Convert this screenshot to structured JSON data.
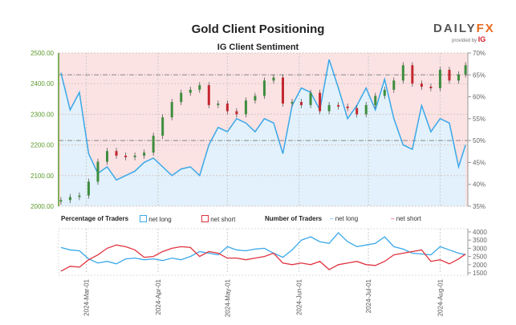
{
  "header": {
    "title": "Gold Client Positioning",
    "subtitle": "IG Client Sentiment",
    "logo": "DAILYFX",
    "provided_by": "provided by",
    "provider": "IG"
  },
  "colors": {
    "long": "#3aa8e8",
    "short": "#e03340",
    "up": "#3e8e3e",
    "down": "#c4272f",
    "short_bg": "#fbe2e3",
    "long_bg": "#e2f1fb",
    "price_axis": "#5a9a2a"
  },
  "legend": {
    "pct_title": "Percentage of Traders",
    "pct_long": "net long",
    "pct_short": "net short",
    "num_title": "Number of Traders",
    "num_long": "net long",
    "num_short": "net short"
  },
  "chart_data": [
    {
      "type": "line",
      "title": "IG Client Sentiment",
      "price_axis": {
        "ticks": [
          "2000.00",
          "2100.00",
          "2200.00",
          "2300.00",
          "2400.00",
          "2500.00"
        ],
        "ylim": [
          2000,
          2500
        ]
      },
      "pct_axis": {
        "ticks": [
          "35%",
          "40%",
          "45%",
          "50%",
          "55%",
          "60%",
          "65%",
          "70%"
        ],
        "ylim": [
          35,
          70
        ]
      },
      "reference_lines_pct": [
        65,
        50
      ],
      "dates": [
        "2024-02-19",
        "2024-02-23",
        "2024-02-27",
        "2024-03-02",
        "2024-03-06",
        "2024-03-10",
        "2024-03-14",
        "2024-03-18",
        "2024-03-22",
        "2024-03-26",
        "2024-03-30",
        "2024-04-03",
        "2024-04-07",
        "2024-04-11",
        "2024-04-15",
        "2024-04-19",
        "2024-04-23",
        "2024-04-27",
        "2024-05-01",
        "2024-05-05",
        "2024-05-09",
        "2024-05-13",
        "2024-05-17",
        "2024-05-21",
        "2024-05-25",
        "2024-05-29",
        "2024-06-02",
        "2024-06-06",
        "2024-06-10",
        "2024-06-14",
        "2024-06-18",
        "2024-06-22",
        "2024-06-26",
        "2024-06-30",
        "2024-07-04",
        "2024-07-08",
        "2024-07-12",
        "2024-07-16",
        "2024-07-20",
        "2024-07-24",
        "2024-07-28",
        "2024-08-01",
        "2024-08-05",
        "2024-08-09",
        "2024-08-12"
      ],
      "price_close": [
        2020,
        2030,
        2035,
        2080,
        2145,
        2180,
        2165,
        2160,
        2165,
        2175,
        2230,
        2290,
        2340,
        2370,
        2380,
        2395,
        2330,
        2335,
        2310,
        2300,
        2345,
        2360,
        2410,
        2420,
        2335,
        2340,
        2330,
        2370,
        2310,
        2330,
        2325,
        2320,
        2300,
        2330,
        2360,
        2380,
        2410,
        2460,
        2400,
        2390,
        2385,
        2445,
        2410,
        2430,
        2460
      ],
      "net_long_pct": [
        65.5,
        57,
        61,
        47,
        42.5,
        44,
        41,
        42,
        43,
        45,
        46,
        44,
        42,
        43.5,
        44,
        42,
        49,
        53,
        52,
        55,
        54,
        52,
        55,
        54,
        47,
        58,
        62,
        61,
        57,
        68.5,
        62,
        55,
        58,
        62,
        57,
        64,
        55,
        49,
        48,
        58,
        52,
        55,
        54,
        44,
        49
      ]
    },
    {
      "type": "line",
      "title": "Number of Traders",
      "ylim": [
        1500,
        4000
      ],
      "yticks": [
        "1500",
        "2000",
        "2500",
        "3000",
        "3500",
        "4000"
      ],
      "xticks": [
        "2024-Mar-01",
        "2024-Apr-01",
        "2024-May-01",
        "2024-Jun-01",
        "2024-Jul-01",
        "2024-Aug-01"
      ],
      "series": [
        {
          "name": "net long",
          "values": [
            3050,
            2900,
            2850,
            2350,
            2100,
            2200,
            2050,
            2350,
            2400,
            2300,
            2350,
            2250,
            2400,
            2300,
            2500,
            2800,
            2700,
            2600,
            3100,
            2900,
            2850,
            2950,
            3000,
            2700,
            2450,
            2900,
            3500,
            3700,
            3400,
            3300,
            3950,
            3400,
            3100,
            3200,
            3300,
            3700,
            3100,
            2950,
            2700,
            2650,
            2600,
            3100,
            2900,
            2700,
            2600
          ]
        },
        {
          "name": "net short",
          "values": [
            1600,
            1900,
            1850,
            2300,
            2600,
            3000,
            3200,
            3100,
            2900,
            2450,
            2500,
            2800,
            3000,
            3100,
            3050,
            2500,
            2800,
            2700,
            2400,
            2400,
            2300,
            2400,
            2500,
            2700,
            2100,
            2000,
            2100,
            2000,
            2200,
            1700,
            2000,
            2100,
            2200,
            2000,
            1950,
            2200,
            2600,
            2700,
            2800,
            2900,
            2200,
            2300,
            2050,
            2350,
            2650
          ]
        }
      ]
    }
  ]
}
